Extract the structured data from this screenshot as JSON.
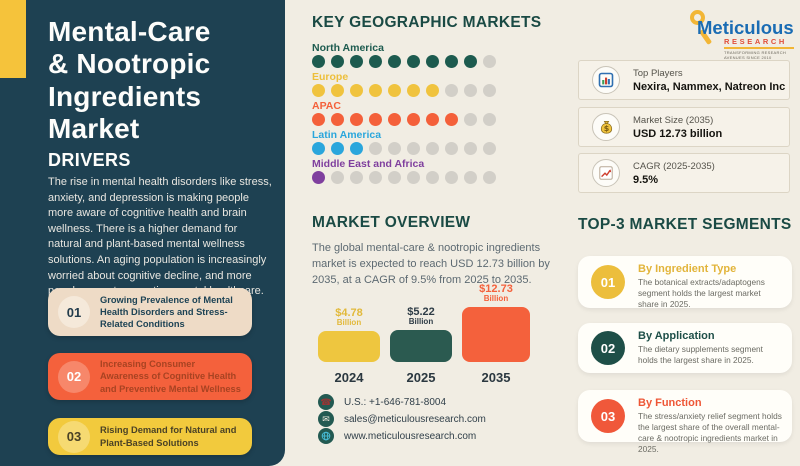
{
  "page": {
    "background": "#f1ede3",
    "panel_color": "#1e4152",
    "accent_color": "#f5c33b",
    "heading_color": "#1a4a44"
  },
  "left_panel": {
    "title": "Mental-Care & Nootropic Ingredients Market",
    "drivers_heading": "DRIVERS",
    "drivers_text": "The rise in mental health disorders like stress, anxiety, and depression is making people more aware of cognitive health and brain wellness. There is a higher demand for natural and plant-based mental wellness solutions. An aging population is increasingly worried about cognitive decline, and more people accept preventive mental healthcare.",
    "driver_cards": [
      {
        "number": "01",
        "text": "Growing Prevalence of Mental Health Disorders and Stress-Related Conditions",
        "bg": "#eedbc6",
        "circle": "#f5e9da",
        "number_color": "#233c4c",
        "text_color": "#1d4355"
      },
      {
        "number": "02",
        "text": "Increasing Consumer Awareness of Cognitive Health and Preventive Mental Wellness",
        "bg": "#f4613c",
        "circle": "#f7876a",
        "number_color": "#ffffff",
        "text_color": "#a84322"
      },
      {
        "number": "03",
        "text": "Rising Demand for Natural and Plant-Based Solutions",
        "bg": "#f2ca3d",
        "circle": "#f6da72",
        "number_color": "#4a4226",
        "text_color": "#4a4226"
      }
    ]
  },
  "geo": {
    "heading": "KEY GEOGRAPHIC MARKETS",
    "max_dots": 10,
    "empty_color": "#d2cfc8",
    "regions": [
      {
        "name": "North America",
        "filled": 9,
        "color": "#1d5b4f"
      },
      {
        "name": "Europe",
        "filled": 7,
        "color": "#f0c33e"
      },
      {
        "name": "APAC",
        "filled": 8,
        "color": "#f4603a"
      },
      {
        "name": "Latin America",
        "filled": 3,
        "color": "#2aa6dc"
      },
      {
        "name": "Middle East and Africa",
        "filled": 1,
        "color": "#7f3f9e"
      }
    ]
  },
  "overview": {
    "heading": "MARKET OVERVIEW",
    "text": "The global mental-care & nootropic ingredients market is expected to reach USD 12.73 billion by 2035, at a CAGR of 9.5% from 2025 to 2035."
  },
  "chart_data": {
    "type": "bar",
    "title": "Market Overview",
    "categories": [
      "2024",
      "2025",
      "2035"
    ],
    "values": [
      4.78,
      5.22,
      12.73
    ],
    "unit": "USD billion",
    "value_labels": [
      "$4.78",
      "$5.22",
      "$12.73"
    ],
    "value_sublabel": "Billion",
    "bar_colors": [
      "#eec63f",
      "#2b5a50",
      "#f4613c"
    ],
    "label_colors": [
      "#e2b93a",
      "#2e3c46",
      "#f4613c"
    ],
    "ylim": [
      0,
      13
    ],
    "xlabel": "",
    "ylabel": "",
    "grid": false,
    "legend": false
  },
  "contact": {
    "circle_color": "#235a52",
    "items": [
      {
        "icon": "phone-icon",
        "glyph": "☎",
        "glyph_color": "#9c3434",
        "text": "U.S.: +1-646-781-8004"
      },
      {
        "icon": "email-icon",
        "glyph": "✉",
        "glyph_color": "#efe9dd",
        "text": "sales@meticulousresearch.com"
      },
      {
        "icon": "globe-icon",
        "glyph": "",
        "glyph_color": "#49c0dc",
        "text": "www.meticulousresearch.com"
      }
    ]
  },
  "logo": {
    "brand": "Meticulous",
    "sub_brand": "RESEARCH",
    "tagline": "TRANSFORMING RESEARCH AVENUES SINCE 2010",
    "brand_color": "#1a6cb4",
    "sub_color": "#e04f3a",
    "glass_color": "#f2b636"
  },
  "stats": [
    {
      "icon": "bar-chart-icon",
      "label": "Top Players",
      "value": "Nexira, Nammex, Natreon Inc"
    },
    {
      "icon": "money-bag-icon",
      "label": "Market Size (2035)",
      "value": "USD 12.73 billion"
    },
    {
      "icon": "growth-chart-icon",
      "label": "CAGR (2025-2035)",
      "value": "9.5%"
    }
  ],
  "segments": {
    "heading": "TOP-3 MARKET SEGMENTS",
    "cards": [
      {
        "number": "01",
        "title": "By Ingredient Type",
        "text": "The botanical extracts/adaptogens segment holds the largest market share in 2025.",
        "accent": "#ecbe3c",
        "title_color": "#e2b43a"
      },
      {
        "number": "02",
        "title": "By Application",
        "text": "The dietary supplements segment holds the largest share in 2025.",
        "accent": "#1e4f48",
        "title_color": "#1e4f48"
      },
      {
        "number": "03",
        "title": "By Function",
        "text": "The stress/anxiety relief segment holds the largest share of the overall mental-care & nootropic ingredients market in 2025.",
        "accent": "#f0583a",
        "title_color": "#ee5636"
      }
    ]
  }
}
